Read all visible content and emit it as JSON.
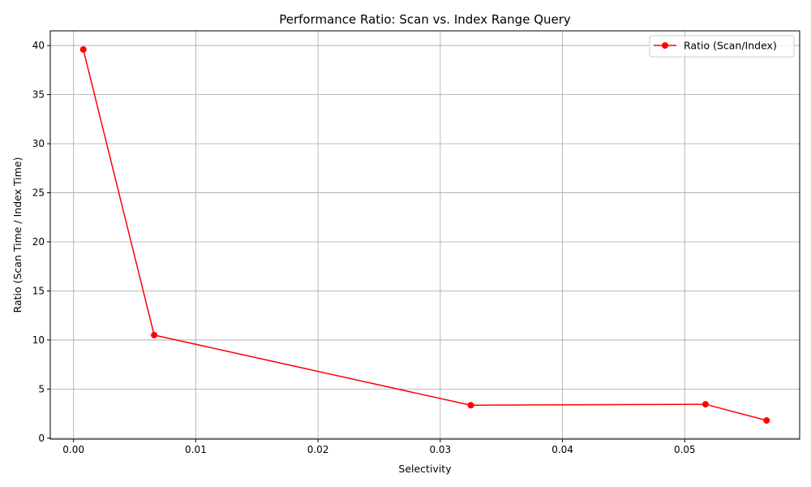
{
  "chart_data": {
    "type": "line",
    "title": "Performance Ratio: Scan vs. Index Range Query",
    "xlabel": "Selectivity",
    "ylabel": "Ratio (Scan Time / Index Time)",
    "xlim": [
      -0.0019,
      0.0594
    ],
    "ylim": [
      -0.1,
      41.5
    ],
    "xticks": [
      0.0,
      0.01,
      0.02,
      0.03,
      0.04,
      0.05
    ],
    "xtick_labels": [
      "0.00",
      "0.01",
      "0.02",
      "0.03",
      "0.04",
      "0.05"
    ],
    "yticks": [
      0,
      5,
      10,
      15,
      20,
      25,
      30,
      35,
      40
    ],
    "ytick_labels": [
      "0",
      "5",
      "10",
      "15",
      "20",
      "25",
      "30",
      "35",
      "40"
    ],
    "grid": true,
    "legend_position": "top-right",
    "series": [
      {
        "name": "Ratio (Scan/Index)",
        "color": "#ff0000",
        "marker": "circle",
        "x": [
          0.0008,
          0.0066,
          0.0325,
          0.0517,
          0.0567
        ],
        "y": [
          39.6,
          10.5,
          3.35,
          3.45,
          1.8
        ]
      }
    ]
  }
}
